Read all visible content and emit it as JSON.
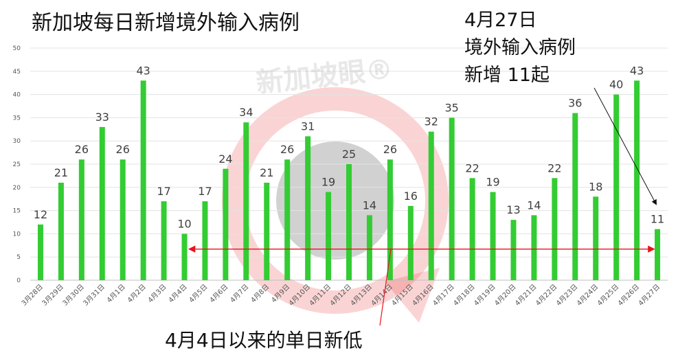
{
  "title": "新加坡每日新增境外输入病例",
  "annotation_top": [
    "4月27日",
    "境外输入病例",
    "新增 11起"
  ],
  "annotation_bottom": "4月4日以来的单日新低",
  "watermark": "新加坡眼®",
  "colors": {
    "bar": "#33cc33",
    "range_arrow": "#e8131a",
    "pointer_arrow": "#111111"
  },
  "chart_data": {
    "type": "bar",
    "title": "新加坡每日新增境外输入病例",
    "categories": [
      "3月28日",
      "3月29日",
      "3月30日",
      "3月31日",
      "4月1日",
      "4月2日",
      "4月3日",
      "4月4日",
      "4月5日",
      "4月6日",
      "4月7日",
      "4月8日",
      "4月9日",
      "4月10日",
      "4月11日",
      "4月12日",
      "4月13日",
      "4月14日",
      "4月15日",
      "4月16日",
      "4月17日",
      "4月18日",
      "4月19日",
      "4月20日",
      "4月21日",
      "4月22日",
      "4月23日",
      "4月24日",
      "4月25日",
      "4月26日",
      "4月27日"
    ],
    "values": [
      12,
      21,
      26,
      33,
      26,
      43,
      17,
      10,
      17,
      24,
      34,
      21,
      26,
      31,
      19,
      25,
      14,
      26,
      16,
      32,
      35,
      22,
      19,
      13,
      14,
      22,
      36,
      18,
      40,
      43,
      11
    ],
    "ylim": [
      0,
      50
    ],
    "yticks": [
      0,
      5,
      10,
      15,
      20,
      25,
      30,
      35,
      40,
      45,
      50
    ],
    "xlabel": "",
    "ylabel": "",
    "grid": true,
    "legend": "none",
    "data_labels": true
  }
}
